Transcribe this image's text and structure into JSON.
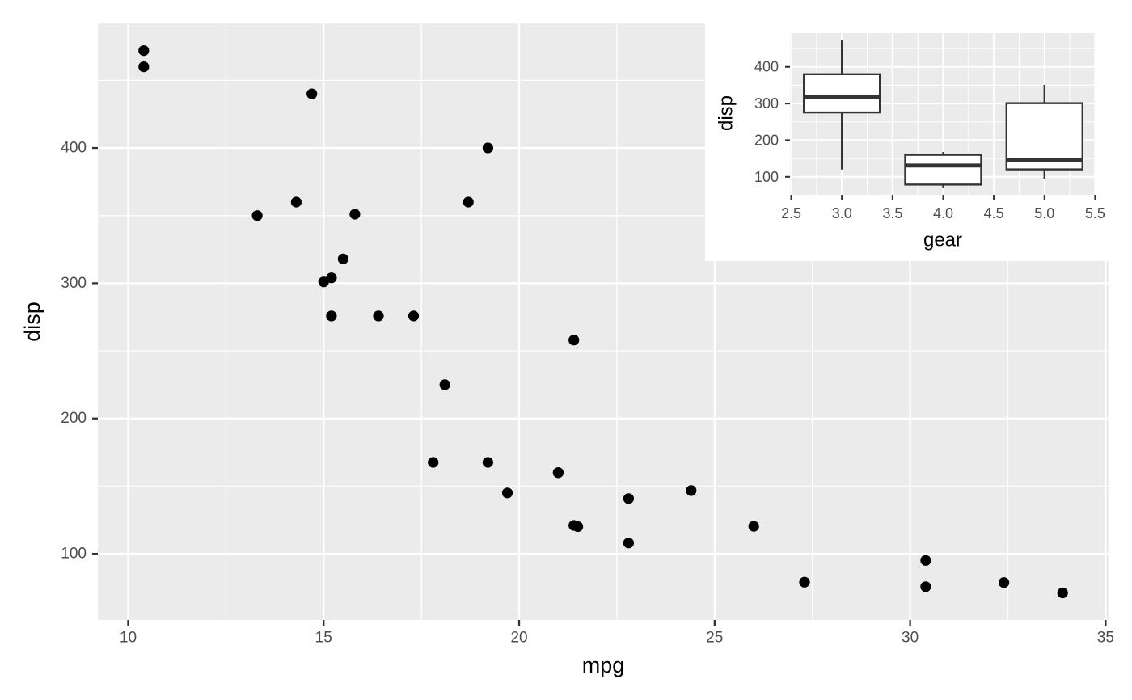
{
  "figure": {
    "style": {
      "background": "#FFFFFF",
      "panel_bg": "#EBEBEB",
      "grid": "#FFFFFF",
      "tick_label": "#4D4D4D",
      "axis_title": "#000000",
      "tick_mark": "#333333",
      "point": "#000000",
      "box_stroke": "#333333",
      "box_fill": "#FFFFFF"
    }
  },
  "chart_data": [
    {
      "id": "main-scatter",
      "type": "scatter",
      "title": "",
      "xlabel": "mpg",
      "ylabel": "disp",
      "xlim": [
        9.225,
        35.075
      ],
      "ylim": [
        51.06,
        492.05
      ],
      "x_ticks": [
        10,
        15,
        20,
        25,
        30,
        35
      ],
      "x_tick_labels": [
        "10",
        "15",
        "20",
        "25",
        "30",
        "35"
      ],
      "y_ticks": [
        100,
        200,
        300,
        400
      ],
      "y_tick_labels": [
        "100",
        "200",
        "300",
        "400"
      ],
      "x_minor": [
        12.5,
        17.5,
        22.5,
        27.5,
        32.5
      ],
      "y_minor": [
        150,
        250,
        350,
        450
      ],
      "grid": true,
      "legend": "none",
      "points": [
        [
          21.0,
          160
        ],
        [
          21.0,
          160
        ],
        [
          22.8,
          108
        ],
        [
          21.4,
          258
        ],
        [
          18.7,
          360
        ],
        [
          18.1,
          225
        ],
        [
          14.3,
          360
        ],
        [
          24.4,
          146.7
        ],
        [
          22.8,
          140.8
        ],
        [
          19.2,
          167.6
        ],
        [
          17.8,
          167.6
        ],
        [
          16.4,
          275.8
        ],
        [
          17.3,
          275.8
        ],
        [
          15.2,
          275.8
        ],
        [
          10.4,
          472
        ],
        [
          10.4,
          460
        ],
        [
          14.7,
          440
        ],
        [
          32.4,
          78.7
        ],
        [
          30.4,
          75.7
        ],
        [
          33.9,
          71.1
        ],
        [
          21.5,
          120.1
        ],
        [
          15.5,
          318
        ],
        [
          15.2,
          304
        ],
        [
          13.3,
          350
        ],
        [
          19.2,
          400
        ],
        [
          27.3,
          79
        ],
        [
          26.0,
          120.3
        ],
        [
          30.4,
          95.1
        ],
        [
          15.8,
          351
        ],
        [
          19.7,
          145
        ],
        [
          15.0,
          301
        ],
        [
          21.4,
          121
        ]
      ]
    },
    {
      "id": "inset-boxplot",
      "type": "boxplot",
      "title": "",
      "xlabel": "gear",
      "ylabel": "disp",
      "xlim": [
        2.4875,
        5.5125
      ],
      "ylim": [
        51.06,
        492.05
      ],
      "x_ticks": [
        2.5,
        3.0,
        3.5,
        4.0,
        4.5,
        5.0,
        5.5
      ],
      "x_tick_labels": [
        "2.5",
        "3.0",
        "3.5",
        "4.0",
        "4.5",
        "5.0",
        "5.5"
      ],
      "y_ticks": [
        100,
        200,
        300,
        400
      ],
      "y_tick_labels": [
        "100",
        "200",
        "300",
        "400"
      ],
      "x_minor": [
        2.75,
        3.25,
        3.75,
        4.25,
        4.75,
        5.25
      ],
      "y_minor": [
        150,
        250,
        350,
        450
      ],
      "grid": true,
      "legend": "none",
      "box_width": 0.75,
      "boxes": [
        {
          "gear": 3,
          "whisker_low": 120.1,
          "q1": 275.8,
          "median": 318.0,
          "q3": 380.0,
          "whisker_high": 472.0
        },
        {
          "gear": 4,
          "whisker_low": 71.1,
          "q1": 78.9,
          "median": 130.9,
          "q3": 160.0,
          "whisker_high": 167.6
        },
        {
          "gear": 5,
          "whisker_low": 95.1,
          "q1": 120.3,
          "median": 145.0,
          "q3": 301.0,
          "whisker_high": 351.0
        }
      ]
    }
  ]
}
